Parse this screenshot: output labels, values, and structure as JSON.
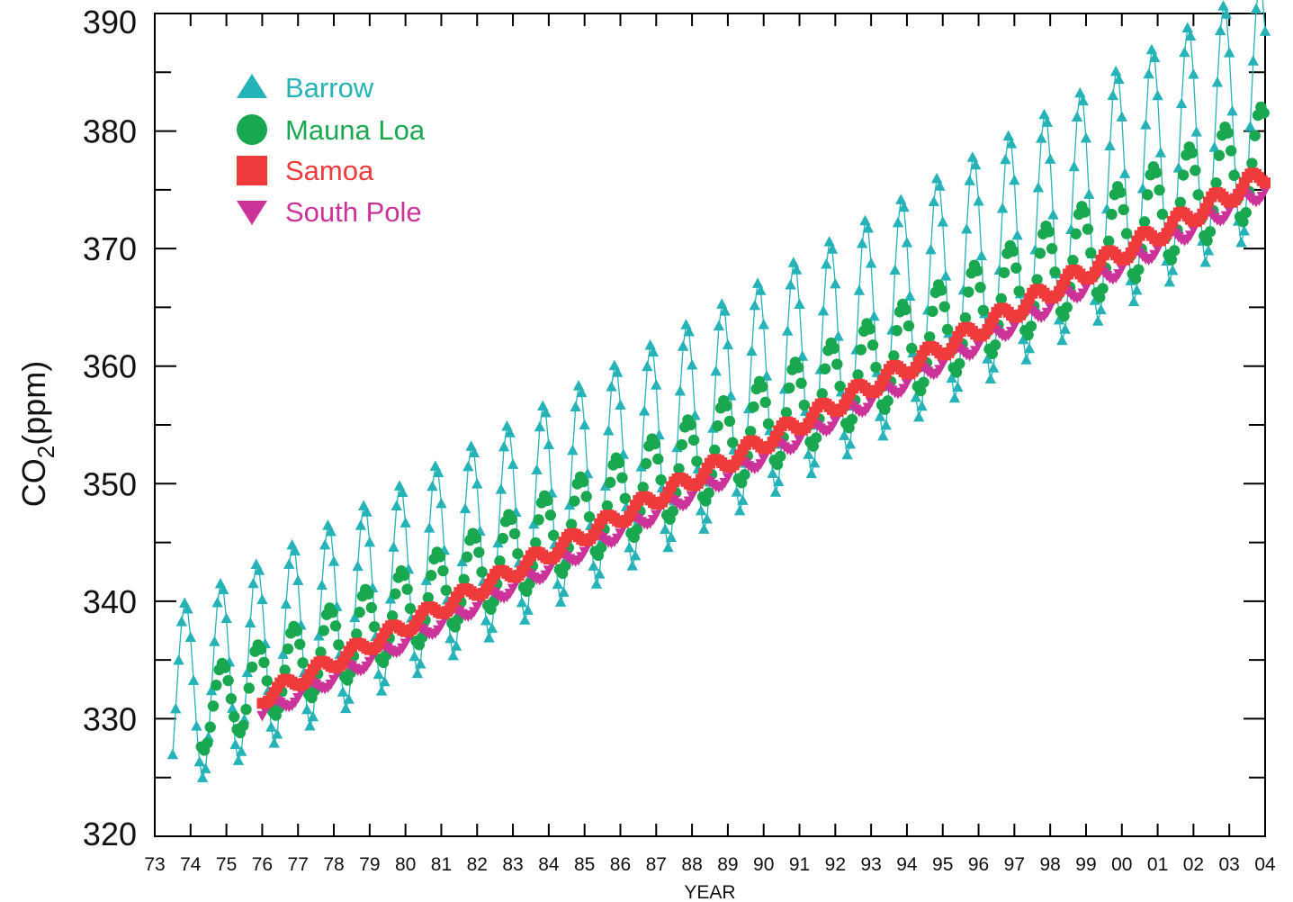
{
  "chart_data": {
    "type": "line",
    "xlabel": "YEAR",
    "ylabel": "CO",
    "ylabel_sub": "2",
    "ylabel_unit": "(ppm)",
    "xlim": [
      1973,
      2004
    ],
    "ylim": [
      320,
      390
    ],
    "x_ticks": [
      "73",
      "74",
      "75",
      "76",
      "77",
      "78",
      "79",
      "80",
      "81",
      "82",
      "83",
      "84",
      "85",
      "86",
      "87",
      "88",
      "89",
      "90",
      "91",
      "92",
      "93",
      "94",
      "95",
      "96",
      "97",
      "98",
      "99",
      "00",
      "01",
      "02",
      "03",
      "04"
    ],
    "y_ticks": [
      "320",
      "330",
      "340",
      "350",
      "360",
      "370",
      "380",
      "390"
    ],
    "legend_position": "top-left",
    "series": [
      {
        "name": "Barrow",
        "color": "#25b3b8",
        "marker": "triangle-up",
        "connected": true,
        "x_start": 1973.5,
        "x_end": 2004.0,
        "base_start": 331.5,
        "base_slope": 1.54,
        "amplitude": 7.8,
        "seasonal_peak_year_fraction": 0.35,
        "points_per_year": 12
      },
      {
        "name": "Mauna Loa",
        "color": "#19a84f",
        "marker": "circle",
        "connected": false,
        "x_start": 1974.3,
        "x_end": 2004.0,
        "base_start": 330.5,
        "base_slope": 1.52,
        "amplitude": 3.3,
        "seasonal_peak_year_fraction": 0.38,
        "points_per_year": 12
      },
      {
        "name": "Samoa",
        "color": "#ef3b3b",
        "marker": "square",
        "connected": false,
        "x_start": 1976.0,
        "x_end": 2004.0,
        "base_start": 331.8,
        "base_slope": 1.52,
        "amplitude": 0.6,
        "seasonal_peak_year_fraction": 0.1,
        "points_per_year": 12
      },
      {
        "name": "South Pole",
        "color": "#cc3399",
        "marker": "triangle-down",
        "connected": false,
        "x_start": 1976.0,
        "x_end": 2004.0,
        "base_start": 330.5,
        "base_slope": 1.53,
        "amplitude": 0.6,
        "seasonal_peak_year_fraction": 0.8,
        "points_per_year": 12
      }
    ]
  }
}
